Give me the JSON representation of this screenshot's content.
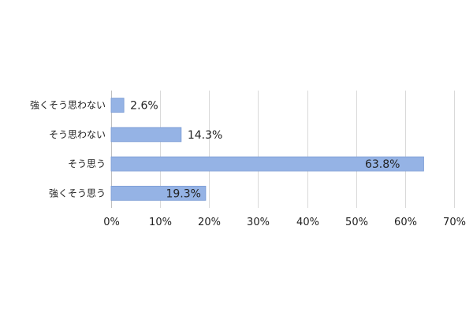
{
  "chart_data": {
    "type": "bar",
    "orientation": "horizontal",
    "categories": [
      "強くそう思わない",
      "そう思わない",
      "そう思う",
      "強くそう思う"
    ],
    "values": [
      2.6,
      14.3,
      63.8,
      19.3
    ],
    "data_labels": [
      "2.6%",
      "14.3%",
      "63.8%",
      "19.3%"
    ],
    "x_ticks": [
      "0%",
      "10%",
      "20%",
      "30%",
      "40%",
      "50%",
      "60%",
      "70%"
    ],
    "xlim": [
      0,
      70
    ],
    "grid": true,
    "legend": "none",
    "colors": {
      "bar": "#95B3E5",
      "bar_edge": "#7A9BD4"
    }
  }
}
